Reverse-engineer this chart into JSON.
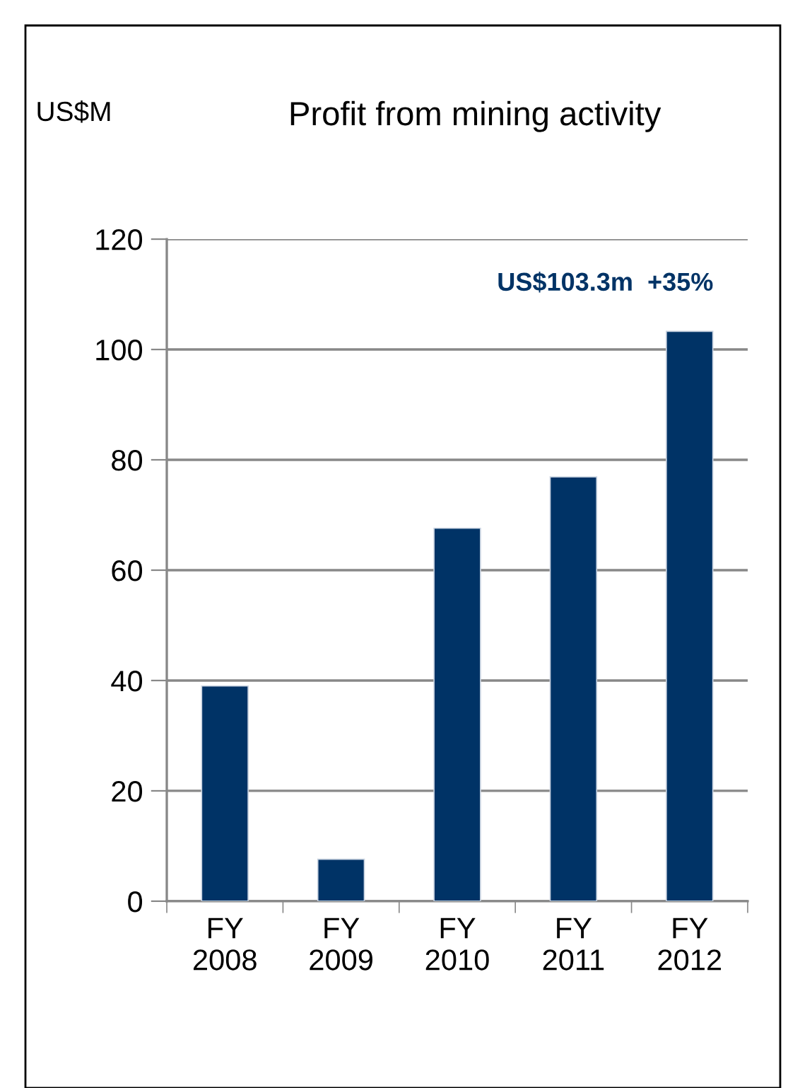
{
  "chart_data": {
    "type": "bar",
    "title": "Profit from mining activity",
    "ylabel": "US$M",
    "categories": [
      "FY\n2008",
      "FY\n2009",
      "FY\n2010",
      "FY\n2011",
      "FY\n2012"
    ],
    "values": [
      39.0,
      7.6,
      67.6,
      76.9,
      103.3
    ],
    "color": "#003366",
    "ylim": [
      0,
      120
    ],
    "yticks": [
      0,
      20,
      40,
      60,
      80,
      100,
      120
    ],
    "grid": "y",
    "legend": false,
    "annotations": [
      {
        "text": "US$103.3m  +35%",
        "x": "FY\n2012",
        "y": 103.3
      }
    ]
  }
}
